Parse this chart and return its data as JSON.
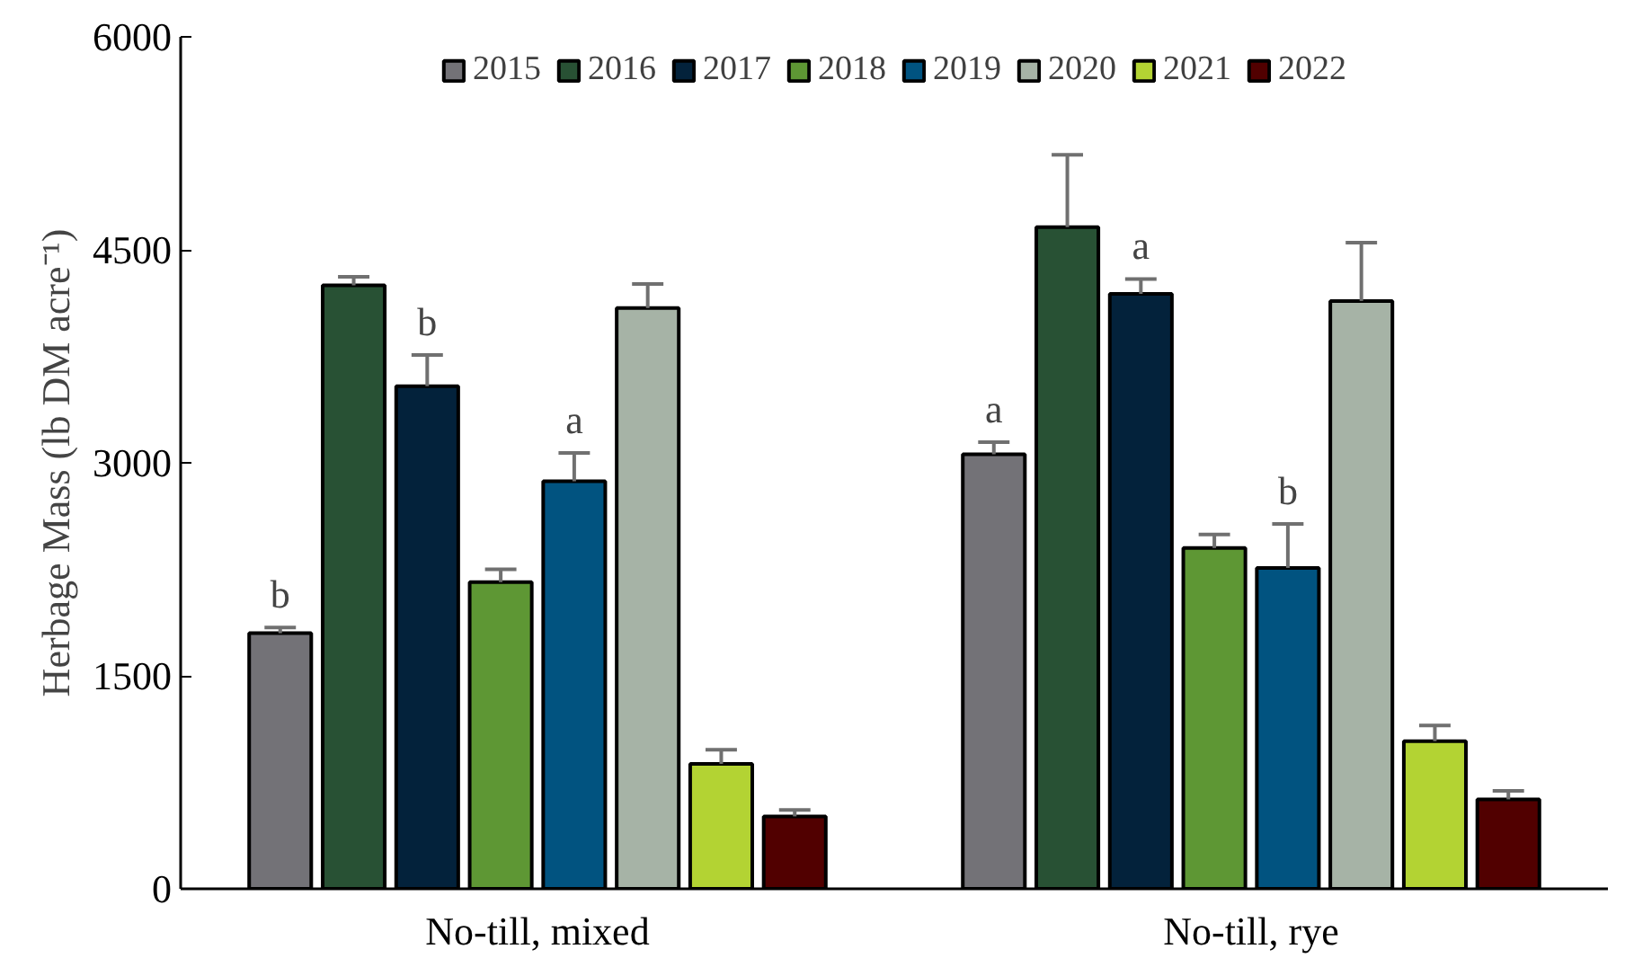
{
  "chart_data": {
    "type": "bar",
    "ylabel": "Herbage Mass (lb DM acre⁻¹)",
    "categories": [
      "No-till, mixed",
      "No-till, rye"
    ],
    "series": [
      {
        "name": "2015",
        "color": "#737277",
        "values": [
          1800,
          3060
        ],
        "errors": [
          40,
          85
        ],
        "value_labels": [
          "b",
          "a"
        ]
      },
      {
        "name": "2016",
        "color": "#285134",
        "values": [
          4250,
          4660
        ],
        "errors": [
          60,
          510
        ]
      },
      {
        "name": "2017",
        "color": "#03223b",
        "values": [
          3540,
          4190
        ],
        "errors": [
          220,
          105
        ],
        "value_labels": [
          "b",
          "a"
        ]
      },
      {
        "name": "2018",
        "color": "#5e9734",
        "values": [
          2160,
          2400
        ],
        "errors": [
          90,
          95
        ]
      },
      {
        "name": "2019",
        "color": "#015380",
        "values": [
          2870,
          2260
        ],
        "errors": [
          200,
          310
        ],
        "value_labels": [
          "a",
          "b"
        ]
      },
      {
        "name": "2020",
        "color": "#a6b3a6",
        "values": [
          4090,
          4140
        ],
        "errors": [
          170,
          410
        ]
      },
      {
        "name": "2021",
        "color": "#b3d333",
        "values": [
          880,
          1040
        ],
        "errors": [
          100,
          110
        ]
      },
      {
        "name": "2022",
        "color": "#510000",
        "values": [
          510,
          630
        ],
        "errors": [
          45,
          60
        ]
      }
    ],
    "ylim": [
      0,
      6000
    ],
    "yticks": [
      0,
      1500,
      3000,
      4500,
      6000
    ],
    "grid": false,
    "legend": "top"
  }
}
